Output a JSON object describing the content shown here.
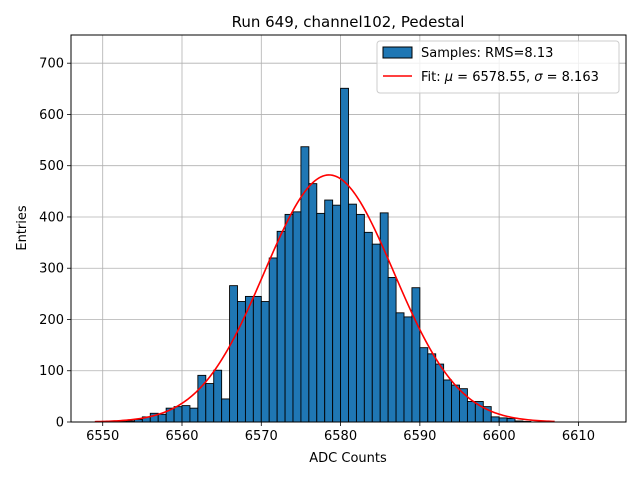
{
  "chart_data": {
    "type": "bar",
    "title": "Run 649, channel102, Pedestal",
    "xlabel": "ADC Counts",
    "ylabel": "Entries",
    "xlim": [
      6546,
      6616
    ],
    "ylim": [
      0,
      755
    ],
    "xticks": [
      6550,
      6560,
      6570,
      6580,
      6590,
      6600,
      6610
    ],
    "yticks": [
      0,
      100,
      200,
      300,
      400,
      500,
      600,
      700
    ],
    "grid": true,
    "legend_position": "top-right",
    "colors": {
      "bars": "#1f77b4",
      "bar_edge": "#000000",
      "fit": "#ff0000",
      "grid": "#b0b0b0"
    },
    "series": [
      {
        "name": "Samples: RMS=8.13",
        "kind": "histogram",
        "bin_width": 1,
        "bin_starts": [
          6549,
          6550,
          6551,
          6552,
          6553,
          6554,
          6555,
          6556,
          6557,
          6558,
          6559,
          6560,
          6561,
          6562,
          6563,
          6564,
          6565,
          6566,
          6567,
          6568,
          6569,
          6570,
          6571,
          6572,
          6573,
          6574,
          6575,
          6576,
          6577,
          6578,
          6579,
          6580,
          6581,
          6582,
          6583,
          6584,
          6585,
          6586,
          6587,
          6588,
          6589,
          6590,
          6591,
          6592,
          6593,
          6594,
          6595,
          6596,
          6597,
          6598,
          6599,
          6600,
          6601,
          6602,
          6603,
          6604,
          6605,
          6606
        ],
        "values": [
          0,
          0,
          1,
          1,
          2,
          5,
          10,
          17,
          15,
          27,
          30,
          32,
          27,
          91,
          75,
          101,
          45,
          266,
          235,
          245,
          245,
          235,
          320,
          372,
          405,
          410,
          537,
          465,
          407,
          433,
          423,
          651,
          425,
          405,
          370,
          347,
          408,
          282,
          213,
          205,
          262,
          145,
          133,
          113,
          82,
          72,
          65,
          40,
          40,
          30,
          10,
          8,
          7,
          2,
          1,
          0,
          0,
          0
        ]
      },
      {
        "name": "Fit: μ = 6578.55, σ = 8.163",
        "kind": "gaussian",
        "mu": 6578.55,
        "sigma": 8.163,
        "amplitude": 482,
        "x_range": [
          6549,
          6607
        ]
      }
    ],
    "legend": {
      "hist_prefix": "Samples: RMS=8.13",
      "fit_prefix": "Fit: ",
      "mu_symbol": "μ",
      "fit_mid": " = 6578.55, ",
      "sigma_symbol": "σ",
      "fit_end": " = 8.163"
    }
  }
}
